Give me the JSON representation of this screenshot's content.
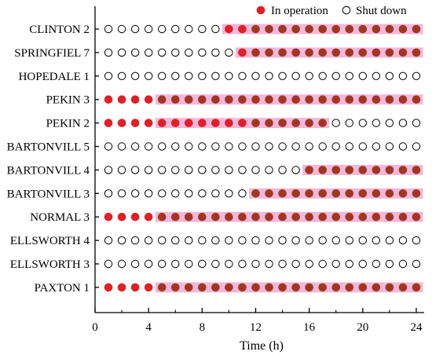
{
  "chart_data": {
    "type": "scatter",
    "xlabel": "Time (h)",
    "ylabel": "",
    "xlim": [
      0,
      24.6
    ],
    "x_ticks": [
      "0",
      "4",
      "8",
      "12",
      "16",
      "20",
      "24"
    ],
    "x_tick_values": [
      0,
      4,
      8,
      12,
      16,
      20,
      24
    ],
    "hours": [
      1,
      2,
      3,
      4,
      5,
      6,
      7,
      8,
      9,
      10,
      11,
      12,
      13,
      14,
      15,
      16,
      17,
      18,
      19,
      20,
      21,
      22,
      23,
      24
    ],
    "legend": {
      "position": "top-right",
      "entries": [
        {
          "label": "In operation",
          "state": 1
        },
        {
          "label": "Shut down",
          "state": 0
        }
      ]
    },
    "colors": {
      "on_fill": "#e31e24",
      "on_fill_shaded": "#a3361f",
      "off_stroke": "#000000",
      "band": "#f2b8dc",
      "axis": "#000000"
    },
    "units": [
      {
        "name": "CLINTON 2",
        "status": [
          0,
          0,
          0,
          0,
          0,
          0,
          0,
          0,
          0,
          1,
          1,
          1,
          1,
          1,
          1,
          1,
          1,
          1,
          1,
          1,
          1,
          1,
          1,
          1
        ]
      },
      {
        "name": "SPRINGFIEL 7",
        "status": [
          0,
          0,
          0,
          0,
          0,
          0,
          0,
          0,
          0,
          0,
          1,
          1,
          1,
          1,
          1,
          1,
          1,
          1,
          1,
          1,
          1,
          1,
          1,
          1
        ]
      },
      {
        "name": "HOPEDALE 1",
        "status": [
          0,
          0,
          0,
          0,
          0,
          0,
          0,
          0,
          0,
          0,
          0,
          0,
          0,
          0,
          0,
          0,
          0,
          0,
          0,
          0,
          0,
          0,
          0,
          0
        ]
      },
      {
        "name": "PEKIN 3",
        "status": [
          1,
          1,
          1,
          1,
          1,
          1,
          1,
          1,
          1,
          1,
          1,
          1,
          1,
          1,
          1,
          1,
          1,
          1,
          1,
          1,
          1,
          1,
          1,
          1
        ]
      },
      {
        "name": "PEKIN 2",
        "status": [
          1,
          1,
          1,
          1,
          1,
          1,
          1,
          1,
          1,
          1,
          1,
          1,
          1,
          1,
          1,
          1,
          1,
          0,
          0,
          0,
          0,
          0,
          0,
          0
        ]
      },
      {
        "name": "BARTONVILL 5",
        "status": [
          0,
          0,
          0,
          0,
          0,
          0,
          0,
          0,
          0,
          0,
          0,
          0,
          0,
          0,
          0,
          0,
          0,
          0,
          0,
          0,
          0,
          0,
          0,
          0
        ]
      },
      {
        "name": "BARTONVILL 4",
        "status": [
          0,
          0,
          0,
          0,
          0,
          0,
          0,
          0,
          0,
          0,
          0,
          0,
          0,
          0,
          0,
          1,
          1,
          1,
          1,
          1,
          1,
          1,
          1,
          1
        ]
      },
      {
        "name": "BARTONVILL 3",
        "status": [
          0,
          0,
          0,
          0,
          0,
          0,
          0,
          0,
          0,
          0,
          0,
          1,
          1,
          1,
          1,
          1,
          1,
          1,
          1,
          1,
          1,
          1,
          1,
          1
        ]
      },
      {
        "name": "NORMAL 3",
        "status": [
          1,
          1,
          1,
          1,
          1,
          1,
          1,
          1,
          1,
          1,
          1,
          1,
          1,
          1,
          1,
          1,
          1,
          1,
          1,
          1,
          1,
          1,
          1,
          1
        ]
      },
      {
        "name": "ELLSWORTH 4",
        "status": [
          0,
          0,
          0,
          0,
          0,
          0,
          0,
          0,
          0,
          0,
          0,
          0,
          0,
          0,
          0,
          0,
          0,
          0,
          0,
          0,
          0,
          0,
          0,
          0
        ]
      },
      {
        "name": "ELLSWORTH 3",
        "status": [
          0,
          0,
          0,
          0,
          0,
          0,
          0,
          0,
          0,
          0,
          0,
          0,
          0,
          0,
          0,
          0,
          0,
          0,
          0,
          0,
          0,
          0,
          0,
          0
        ]
      },
      {
        "name": "PAXTON 1",
        "status": [
          1,
          1,
          1,
          1,
          1,
          1,
          1,
          1,
          1,
          1,
          1,
          1,
          1,
          1,
          1,
          1,
          1,
          1,
          1,
          1,
          1,
          1,
          1,
          1
        ]
      }
    ]
  }
}
